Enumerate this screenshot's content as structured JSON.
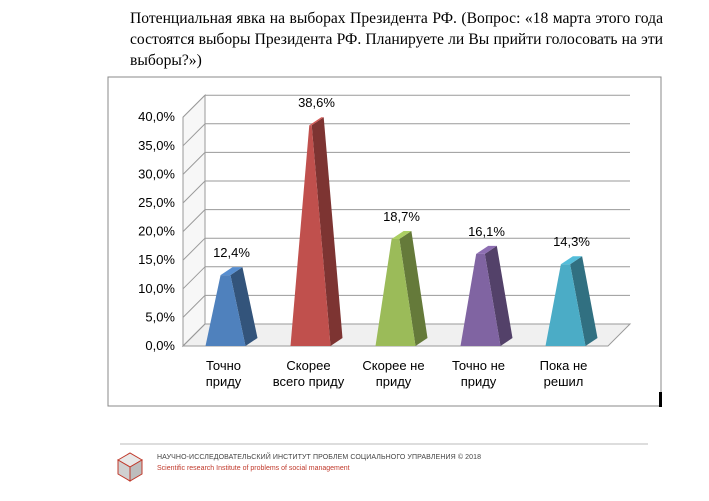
{
  "title": "Потенциальная явка на выборах Президента РФ. (Вопрос: «18 марта этого года состоятся выборы Президента РФ. Планируете ли Вы прийти голосовать на эти выборы?»)",
  "chart_data": {
    "type": "bar",
    "categories": [
      [
        "Точно",
        "приду"
      ],
      [
        "Скорее",
        "всего приду"
      ],
      [
        "Скорее не",
        "приду"
      ],
      [
        "Точно не",
        "приду"
      ],
      [
        "Пока не",
        "решил"
      ]
    ],
    "values": [
      12.4,
      38.6,
      18.7,
      16.1,
      14.3
    ],
    "value_labels": [
      "12,4%",
      "38,6%",
      "18,7%",
      "16,1%",
      "14,3%"
    ],
    "colors": [
      "#4f81bd",
      "#c0504d",
      "#9bbb59",
      "#8064a2",
      "#4bacc6"
    ],
    "ylim": [
      0,
      40
    ],
    "yticks": [
      "0,0%",
      "5,0%",
      "10,0%",
      "15,0%",
      "20,0%",
      "25,0%",
      "30,0%",
      "35,0%",
      "40,0%"
    ],
    "grid": true,
    "xlabel": "",
    "ylabel": ""
  },
  "footer": {
    "org": "НАУЧНО-ИССЛЕДОВАТЕЛЬСКИЙ ИНСТИТУТ ПРОБЛЕМ СОЦИАЛЬНОГО УПРАВЛЕНИЯ  © 2018",
    "org_en": "Scientific research Institute of problems of social management"
  }
}
